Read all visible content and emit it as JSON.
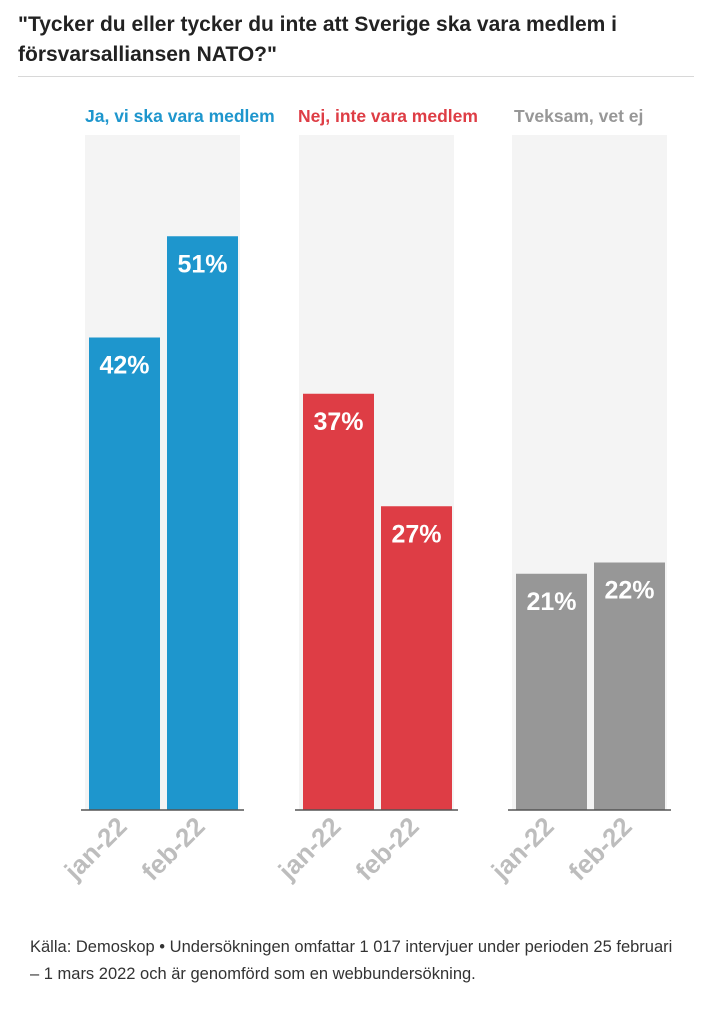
{
  "header": {
    "title": "\"Tycker du eller tycker du inte att Sverige ska vara medlem i försvarsalliansen NATO?\""
  },
  "footer": {
    "source": "Källa: Demoskop • Undersökningen omfattar 1 017 intervjuer under perioden 25 februari – 1 mars 2022 och är genomförd som en webbundersökning."
  },
  "colors": {
    "yes": "#1e96cd",
    "no": "#de3d45",
    "unsure": "#979797",
    "panel_background": "#f4f4f4",
    "axis_label": "#bdbdbd",
    "value_label": "#ffffff"
  },
  "chart_data": {
    "type": "bar",
    "layout": "small-multiples",
    "categories": [
      "jan-22",
      "feb-22"
    ],
    "value_suffix": "%",
    "ylim": [
      0,
      60
    ],
    "grid": false,
    "series": [
      {
        "name": "Ja, vi ska vara medlem",
        "color": "#1e96cd",
        "values": [
          42,
          51
        ]
      },
      {
        "name": "Nej, inte vara medlem",
        "color": "#de3d45",
        "values": [
          37,
          27
        ]
      },
      {
        "name": "Tveksam, vet ej",
        "color": "#979797",
        "values": [
          21,
          22
        ]
      }
    ]
  }
}
